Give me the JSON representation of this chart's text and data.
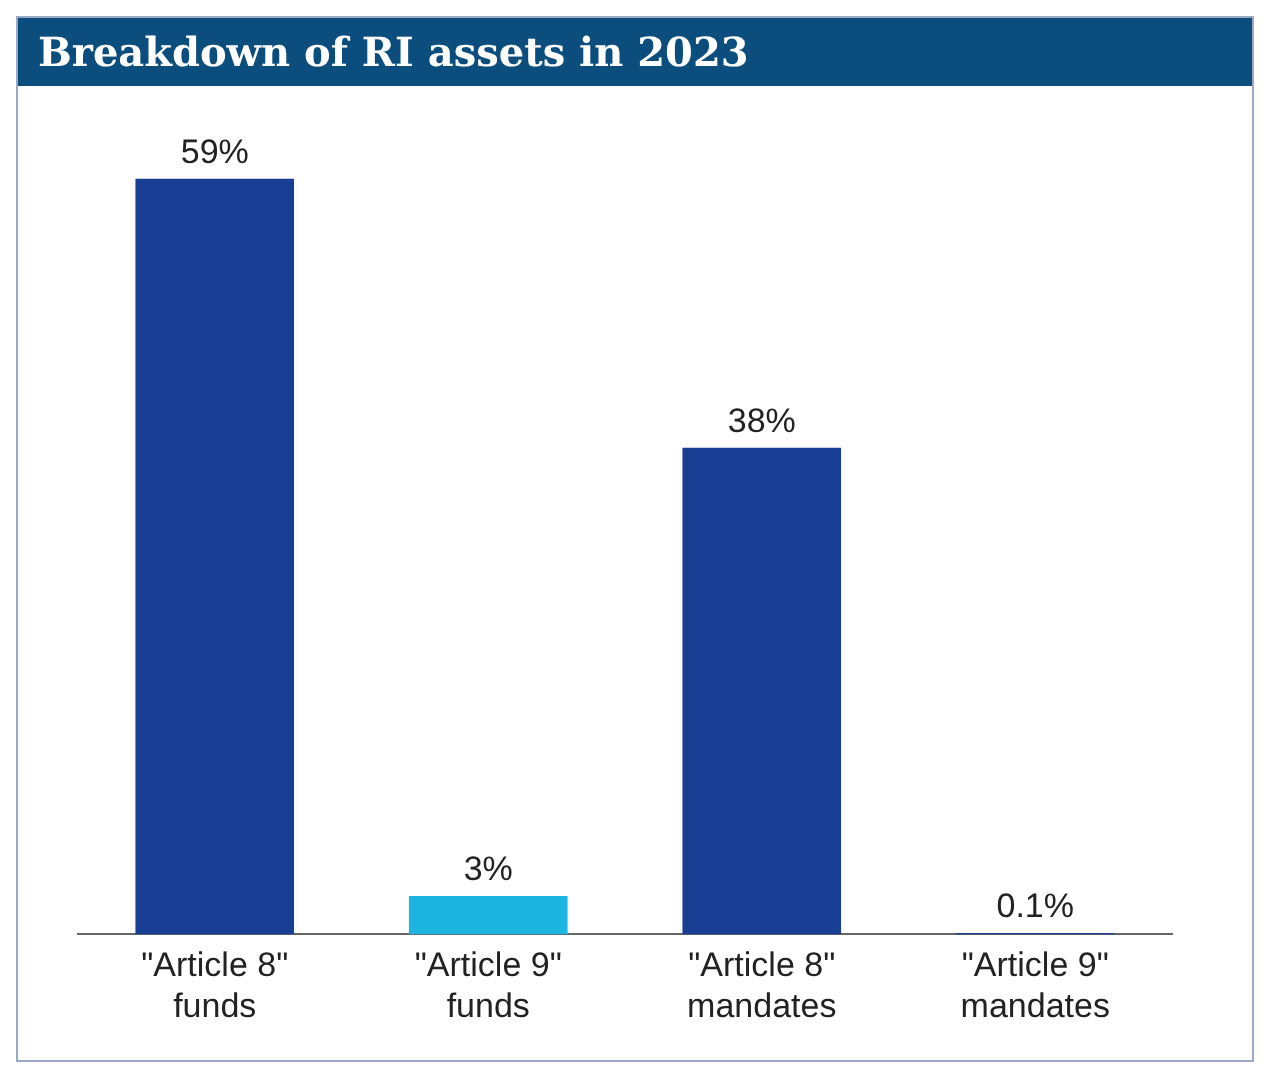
{
  "chart_data": {
    "type": "bar",
    "title": "Breakdown of RI assets in 2023",
    "categories": [
      "\"Article 8\"\nfunds",
      "\"Article 9\"\nfunds",
      "\"Article 8\"\nmandates",
      "\"Article 9\"\nmandates"
    ],
    "values": [
      59,
      3,
      38,
      0.1
    ],
    "colors": [
      "#193f94",
      "#1cb5e0",
      "#193f94",
      "#193f94"
    ],
    "value_labels": [
      "59%",
      "3%",
      "38%",
      "0.1%"
    ],
    "grid": false,
    "legend": false
  }
}
